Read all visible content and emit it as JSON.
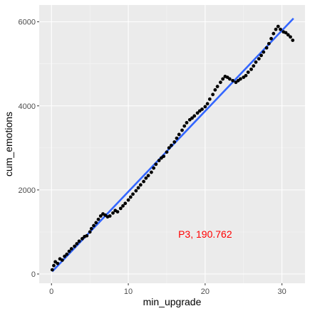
{
  "chart_data": {
    "type": "scatter",
    "xlabel": "min_upgrade",
    "ylabel": "cum_emotions",
    "xlim": [
      -1.6,
      33.0
    ],
    "ylim": [
      -220,
      6400
    ],
    "x_ticks": [
      0,
      10,
      20,
      30
    ],
    "y_ticks": [
      0,
      2000,
      4000,
      6000
    ],
    "x_tick_labels": [
      "0",
      "10",
      "20",
      "30"
    ],
    "y_tick_labels": [
      "0",
      "2000",
      "4000",
      "6000"
    ],
    "grid": true,
    "legend": "none",
    "colors": {
      "panel_background": "#ebebeb",
      "grid_major": "#ffffff",
      "grid_minor": "#f5f5f5",
      "points": "#000000",
      "fit_line": "#3366ff",
      "annotation": "#ff0000"
    },
    "points": [
      [
        0.1,
        100
      ],
      [
        0.3,
        200
      ],
      [
        0.5,
        290
      ],
      [
        0.8,
        250
      ],
      [
        1.1,
        360
      ],
      [
        1.4,
        330
      ],
      [
        1.7,
        420
      ],
      [
        2.0,
        470
      ],
      [
        2.3,
        540
      ],
      [
        2.6,
        600
      ],
      [
        3.0,
        660
      ],
      [
        3.3,
        720
      ],
      [
        3.6,
        780
      ],
      [
        4.0,
        840
      ],
      [
        4.3,
        890
      ],
      [
        4.6,
        910
      ],
      [
        5.0,
        1000
      ],
      [
        5.2,
        1080
      ],
      [
        5.5,
        1150
      ],
      [
        5.8,
        1220
      ],
      [
        6.1,
        1300
      ],
      [
        6.4,
        1380
      ],
      [
        6.7,
        1430
      ],
      [
        7.0,
        1400
      ],
      [
        7.3,
        1360
      ],
      [
        7.6,
        1380
      ],
      [
        8.0,
        1450
      ],
      [
        8.3,
        1510
      ],
      [
        8.6,
        1480
      ],
      [
        9.0,
        1560
      ],
      [
        9.3,
        1620
      ],
      [
        9.6,
        1680
      ],
      [
        10.0,
        1760
      ],
      [
        10.3,
        1830
      ],
      [
        10.6,
        1900
      ],
      [
        11.0,
        1980
      ],
      [
        11.3,
        2050
      ],
      [
        11.6,
        2120
      ],
      [
        12.0,
        2200
      ],
      [
        12.3,
        2280
      ],
      [
        12.6,
        2340
      ],
      [
        13.0,
        2420
      ],
      [
        13.3,
        2520
      ],
      [
        13.6,
        2610
      ],
      [
        14.0,
        2700
      ],
      [
        14.3,
        2760
      ],
      [
        14.6,
        2800
      ],
      [
        15.0,
        2900
      ],
      [
        15.3,
        3000
      ],
      [
        15.6,
        3060
      ],
      [
        16.0,
        3140
      ],
      [
        16.3,
        3230
      ],
      [
        16.6,
        3320
      ],
      [
        17.0,
        3420
      ],
      [
        17.3,
        3520
      ],
      [
        17.6,
        3600
      ],
      [
        18.0,
        3670
      ],
      [
        18.3,
        3710
      ],
      [
        18.6,
        3760
      ],
      [
        19.0,
        3830
      ],
      [
        19.3,
        3880
      ],
      [
        19.6,
        3920
      ],
      [
        20.0,
        3980
      ],
      [
        20.3,
        4050
      ],
      [
        20.6,
        4160
      ],
      [
        21.0,
        4270
      ],
      [
        21.3,
        4380
      ],
      [
        21.6,
        4460
      ],
      [
        22.0,
        4560
      ],
      [
        22.3,
        4640
      ],
      [
        22.6,
        4700
      ],
      [
        22.9,
        4680
      ],
      [
        23.2,
        4640
      ],
      [
        23.6,
        4600
      ],
      [
        24.0,
        4560
      ],
      [
        24.3,
        4600
      ],
      [
        24.6,
        4640
      ],
      [
        25.0,
        4680
      ],
      [
        25.3,
        4720
      ],
      [
        25.6,
        4800
      ],
      [
        26.0,
        4870
      ],
      [
        26.3,
        4950
      ],
      [
        26.6,
        5040
      ],
      [
        27.0,
        5120
      ],
      [
        27.3,
        5200
      ],
      [
        27.6,
        5280
      ],
      [
        28.0,
        5380
      ],
      [
        28.3,
        5480
      ],
      [
        28.6,
        5600
      ],
      [
        28.9,
        5720
      ],
      [
        29.2,
        5820
      ],
      [
        29.5,
        5890
      ],
      [
        29.8,
        5820
      ],
      [
        30.2,
        5760
      ],
      [
        30.5,
        5740
      ],
      [
        30.8,
        5690
      ],
      [
        31.1,
        5640
      ],
      [
        31.4,
        5560
      ]
    ],
    "fit_line": {
      "x": [
        0.1,
        31.5
      ],
      "y": [
        60,
        6080
      ]
    },
    "annotation": {
      "text": "P3, 190.762",
      "x": 20.0,
      "y": 950
    }
  }
}
